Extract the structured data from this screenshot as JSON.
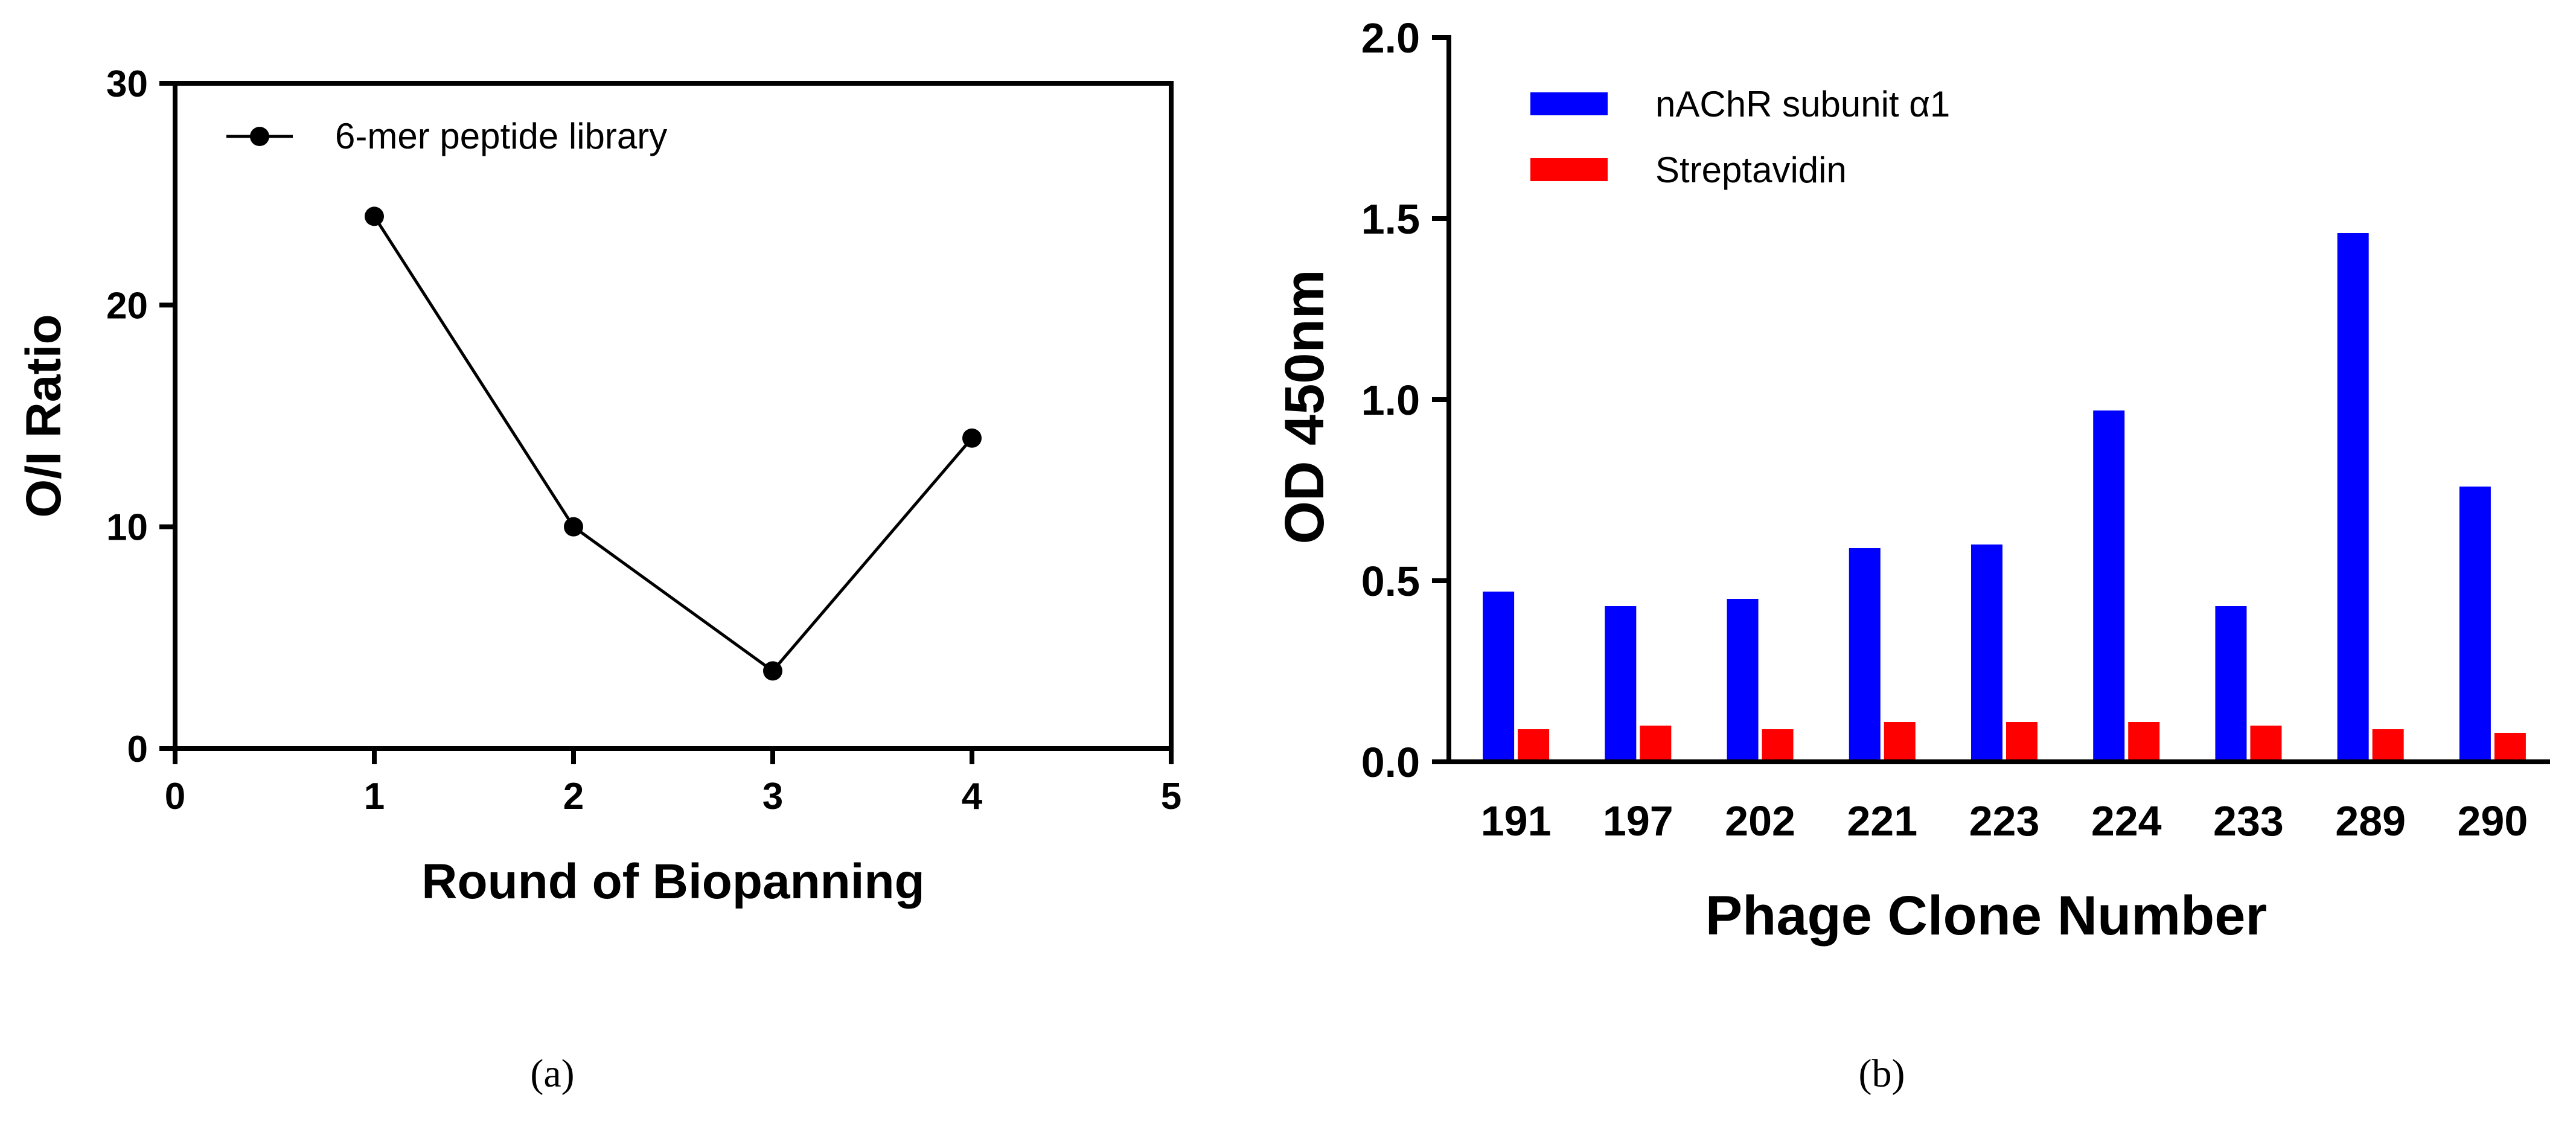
{
  "chart_data": [
    {
      "id": "a",
      "type": "line",
      "title": "",
      "xlabel": "Round of Biopanning",
      "ylabel": "O/I Ratio",
      "xlim": [
        0,
        5
      ],
      "ylim": [
        0,
        30
      ],
      "xticks": [
        "0",
        "1",
        "2",
        "3",
        "4",
        "5"
      ],
      "yticks": [
        "0",
        "10",
        "20",
        "30"
      ],
      "series": [
        {
          "name": "6-mer peptide library",
          "color": "#000000",
          "x": [
            1,
            2,
            3,
            4
          ],
          "y": [
            24,
            10,
            3.5,
            14
          ]
        }
      ],
      "legend_position": "top-left",
      "panel_label": "(a)"
    },
    {
      "id": "b",
      "type": "bar",
      "title": "",
      "xlabel": "Phage Clone Number",
      "ylabel": "OD 450nm",
      "ylim": [
        0,
        2.0
      ],
      "yticks": [
        "0.0",
        "0.5",
        "1.0",
        "1.5",
        "2.0"
      ],
      "categories": [
        "191",
        "197",
        "202",
        "221",
        "223",
        "224",
        "233",
        "289",
        "290"
      ],
      "series": [
        {
          "name": "nAChR subunit α1",
          "color": "#0000ff",
          "values": [
            0.47,
            0.43,
            0.45,
            0.59,
            0.6,
            0.97,
            0.43,
            1.46,
            0.76
          ]
        },
        {
          "name": "Streptavidin",
          "color": "#ff0000",
          "values": [
            0.09,
            0.1,
            0.09,
            0.11,
            0.11,
            0.11,
            0.1,
            0.09,
            0.08
          ]
        }
      ],
      "legend_position": "top-left",
      "panel_label": "(b)"
    }
  ]
}
